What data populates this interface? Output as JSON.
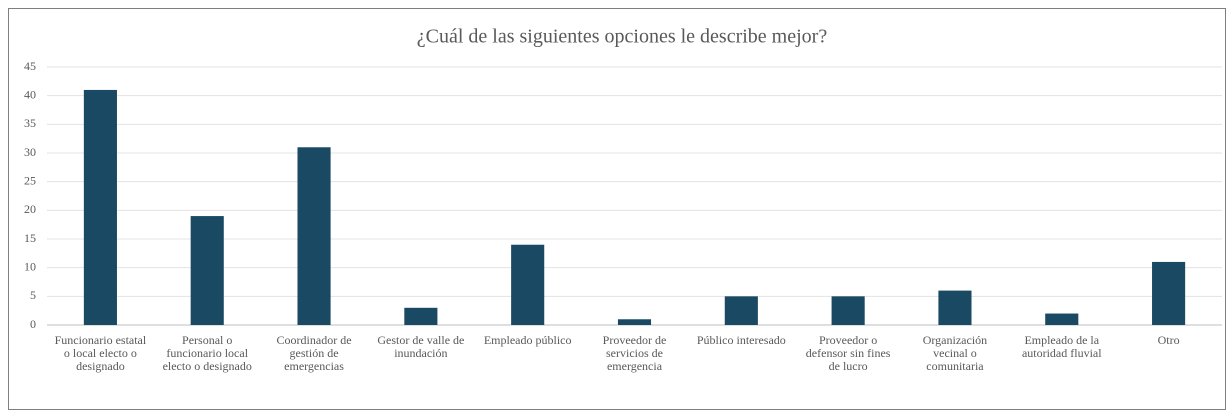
{
  "chart_data": {
    "type": "bar",
    "title": "¿Cuál de las siguientes opciones le describe mejor?",
    "categories": [
      "Funcionario estatal o local electo o designado",
      "Personal o funcionario local electo o designado",
      "Coordinador de gestión de emergencias",
      "Gestor de valle de inundación",
      "Empleado público",
      "Proveedor de servicios de emergencia",
      "Público interesado",
      "Proveedor o defensor sin fines de lucro",
      "Organización vecinal o comunitaria",
      "Empleado de la autoridad fluvial",
      "Otro"
    ],
    "values": [
      41,
      19,
      31,
      3,
      14,
      1,
      5,
      5,
      6,
      2,
      11
    ],
    "color": "#1a4a63",
    "ylim": [
      0,
      45
    ],
    "yticks": [
      0,
      5,
      10,
      15,
      20,
      25,
      30,
      35,
      40,
      45
    ],
    "grid": true
  }
}
